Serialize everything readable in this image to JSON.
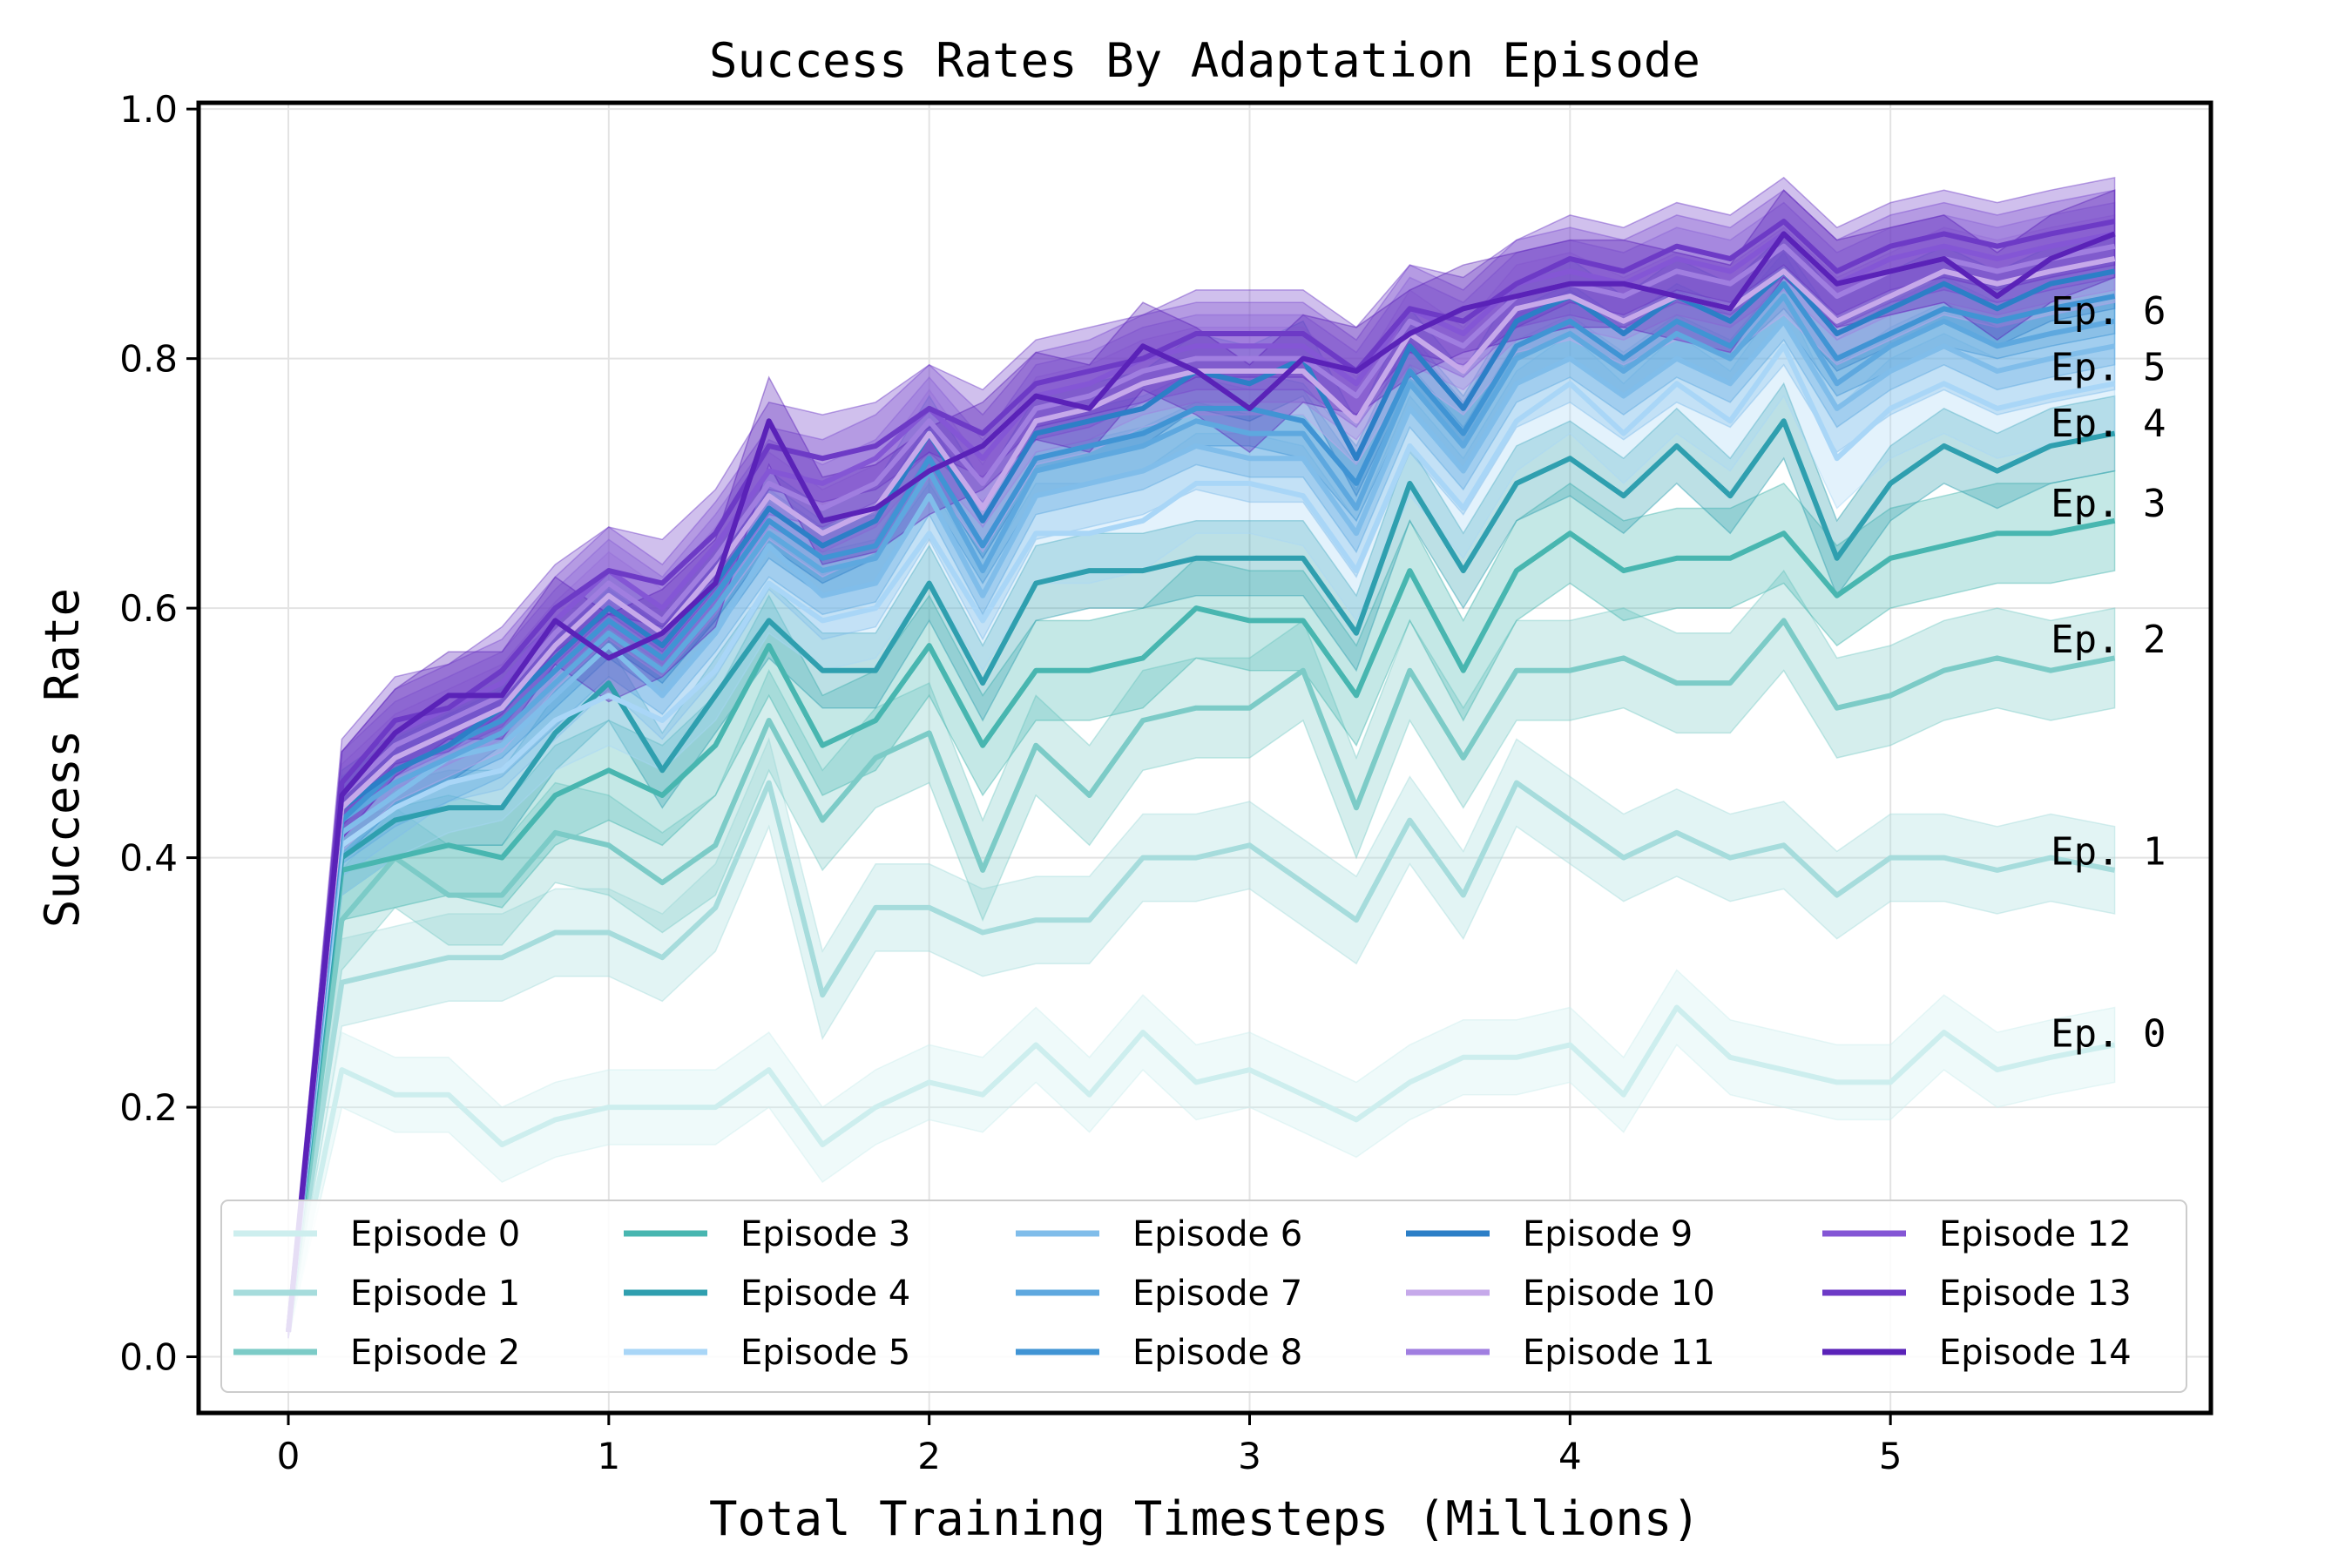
{
  "chart_data": {
    "type": "line",
    "title": "Success Rates By Adaptation Episode",
    "xlabel": "Total Training Timesteps (Millions)",
    "ylabel": "Success Rate",
    "xlim": [
      -0.28,
      6.0
    ],
    "ylim": [
      -0.045,
      1.005
    ],
    "xticks": [
      0,
      1,
      2,
      3,
      4,
      5
    ],
    "yticks": [
      0.0,
      0.2,
      0.4,
      0.6,
      0.8,
      1.0
    ],
    "ytick_labels": [
      "0.0",
      "0.2",
      "0.4",
      "0.6",
      "0.8",
      "1.0"
    ],
    "grid": true,
    "legend_position": "lower-center",
    "legend_columns": 5,
    "annotations": [
      {
        "text": "Ep. 6",
        "x": 5.5,
        "y": 0.838
      },
      {
        "text": "Ep. 5",
        "x": 5.5,
        "y": 0.793
      },
      {
        "text": "Ep. 4",
        "x": 5.5,
        "y": 0.748
      },
      {
        "text": "Ep. 3",
        "x": 5.5,
        "y": 0.684
      },
      {
        "text": "Ep. 2",
        "x": 5.5,
        "y": 0.575
      },
      {
        "text": "Ep. 1",
        "x": 5.5,
        "y": 0.405
      },
      {
        "text": "Ep. 0",
        "x": 5.5,
        "y": 0.259
      }
    ],
    "x": [
      0,
      0.167,
      0.333,
      0.5,
      0.667,
      0.833,
      1.0,
      1.167,
      1.333,
      1.5,
      1.667,
      1.833,
      2.0,
      2.167,
      2.333,
      2.5,
      2.667,
      2.833,
      3.0,
      3.167,
      3.333,
      3.5,
      3.667,
      3.833,
      4.0,
      4.167,
      4.333,
      4.5,
      4.667,
      4.833,
      5.0,
      5.167,
      5.333,
      5.5,
      5.7
    ],
    "series": [
      {
        "name": "Episode 0",
        "color": "#cdeeee",
        "band": 0.03,
        "values": [
          0.02,
          0.23,
          0.21,
          0.21,
          0.17,
          0.19,
          0.2,
          0.2,
          0.2,
          0.23,
          0.17,
          0.2,
          0.22,
          0.21,
          0.25,
          0.21,
          0.26,
          0.22,
          0.23,
          0.21,
          0.19,
          0.22,
          0.24,
          0.24,
          0.25,
          0.21,
          0.28,
          0.24,
          0.23,
          0.22,
          0.22,
          0.26,
          0.23,
          0.24,
          0.25
        ]
      },
      {
        "name": "Episode 1",
        "color": "#a6dcdc",
        "band": 0.035,
        "values": [
          0.02,
          0.3,
          0.31,
          0.32,
          0.32,
          0.34,
          0.34,
          0.32,
          0.36,
          0.46,
          0.29,
          0.36,
          0.36,
          0.34,
          0.35,
          0.35,
          0.4,
          0.4,
          0.41,
          0.38,
          0.35,
          0.43,
          0.37,
          0.46,
          0.43,
          0.4,
          0.42,
          0.4,
          0.41,
          0.37,
          0.4,
          0.4,
          0.39,
          0.4,
          0.39
        ]
      },
      {
        "name": "Episode 2",
        "color": "#7ccbc7",
        "band": 0.04,
        "values": [
          0.02,
          0.35,
          0.4,
          0.37,
          0.37,
          0.42,
          0.41,
          0.38,
          0.41,
          0.51,
          0.43,
          0.48,
          0.5,
          0.39,
          0.49,
          0.45,
          0.51,
          0.52,
          0.52,
          0.55,
          0.44,
          0.55,
          0.48,
          0.55,
          0.55,
          0.56,
          0.54,
          0.54,
          0.59,
          0.52,
          0.53,
          0.55,
          0.56,
          0.55,
          0.56
        ]
      },
      {
        "name": "Episode 3",
        "color": "#48b6b0",
        "band": 0.04,
        "values": [
          0.02,
          0.39,
          0.4,
          0.41,
          0.4,
          0.45,
          0.47,
          0.45,
          0.49,
          0.57,
          0.49,
          0.51,
          0.57,
          0.49,
          0.55,
          0.55,
          0.56,
          0.6,
          0.59,
          0.59,
          0.53,
          0.63,
          0.55,
          0.63,
          0.66,
          0.63,
          0.64,
          0.64,
          0.66,
          0.61,
          0.64,
          0.65,
          0.66,
          0.66,
          0.67
        ]
      },
      {
        "name": "Episode 4",
        "color": "#2f9faf",
        "band": 0.03,
        "values": [
          0.02,
          0.4,
          0.43,
          0.44,
          0.44,
          0.5,
          0.54,
          0.47,
          0.53,
          0.59,
          0.55,
          0.55,
          0.62,
          0.54,
          0.62,
          0.63,
          0.63,
          0.64,
          0.64,
          0.64,
          0.58,
          0.7,
          0.63,
          0.7,
          0.72,
          0.69,
          0.73,
          0.69,
          0.75,
          0.64,
          0.7,
          0.73,
          0.71,
          0.73,
          0.74
        ]
      },
      {
        "name": "Episode 5",
        "color": "#a9d6f7",
        "band": 0.04,
        "values": [
          0.02,
          0.41,
          0.44,
          0.46,
          0.47,
          0.51,
          0.53,
          0.51,
          0.55,
          0.62,
          0.59,
          0.6,
          0.66,
          0.59,
          0.66,
          0.66,
          0.67,
          0.7,
          0.7,
          0.69,
          0.63,
          0.73,
          0.68,
          0.75,
          0.78,
          0.74,
          0.78,
          0.75,
          0.81,
          0.72,
          0.76,
          0.78,
          0.76,
          0.77,
          0.78
        ]
      },
      {
        "name": "Episode 6",
        "color": "#80bdea",
        "band": 0.035,
        "values": [
          0.02,
          0.42,
          0.45,
          0.48,
          0.49,
          0.53,
          0.57,
          0.53,
          0.58,
          0.65,
          0.61,
          0.62,
          0.69,
          0.61,
          0.69,
          0.7,
          0.71,
          0.73,
          0.72,
          0.72,
          0.66,
          0.76,
          0.71,
          0.78,
          0.8,
          0.77,
          0.8,
          0.78,
          0.83,
          0.76,
          0.79,
          0.81,
          0.79,
          0.8,
          0.81
        ]
      },
      {
        "name": "Episode 7",
        "color": "#5ea8df",
        "band": 0.035,
        "values": [
          0.02,
          0.43,
          0.46,
          0.48,
          0.5,
          0.54,
          0.58,
          0.55,
          0.6,
          0.66,
          0.63,
          0.64,
          0.71,
          0.63,
          0.71,
          0.72,
          0.73,
          0.75,
          0.74,
          0.74,
          0.68,
          0.78,
          0.73,
          0.8,
          0.82,
          0.79,
          0.82,
          0.8,
          0.85,
          0.78,
          0.81,
          0.83,
          0.81,
          0.82,
          0.83
        ]
      },
      {
        "name": "Episode 8",
        "color": "#4094d4",
        "band": 0.03,
        "values": [
          0.02,
          0.43,
          0.47,
          0.49,
          0.51,
          0.55,
          0.59,
          0.56,
          0.61,
          0.67,
          0.64,
          0.65,
          0.72,
          0.65,
          0.72,
          0.73,
          0.74,
          0.76,
          0.76,
          0.75,
          0.7,
          0.79,
          0.74,
          0.81,
          0.83,
          0.8,
          0.83,
          0.81,
          0.86,
          0.8,
          0.82,
          0.84,
          0.83,
          0.84,
          0.85
        ]
      },
      {
        "name": "Episode 9",
        "color": "#2c7fc7",
        "band": 0.03,
        "values": [
          0.02,
          0.44,
          0.47,
          0.49,
          0.52,
          0.56,
          0.6,
          0.57,
          0.62,
          0.68,
          0.65,
          0.67,
          0.74,
          0.67,
          0.74,
          0.75,
          0.76,
          0.79,
          0.78,
          0.8,
          0.72,
          0.81,
          0.76,
          0.83,
          0.85,
          0.82,
          0.85,
          0.83,
          0.87,
          0.82,
          0.84,
          0.86,
          0.84,
          0.86,
          0.87
        ]
      },
      {
        "name": "Episode 10",
        "color": "#c6a9ea",
        "band": 0.035,
        "values": [
          0.02,
          0.44,
          0.48,
          0.5,
          0.52,
          0.57,
          0.61,
          0.58,
          0.63,
          0.69,
          0.66,
          0.68,
          0.74,
          0.68,
          0.75,
          0.76,
          0.78,
          0.79,
          0.79,
          0.79,
          0.75,
          0.82,
          0.79,
          0.84,
          0.85,
          0.83,
          0.85,
          0.84,
          0.87,
          0.83,
          0.85,
          0.87,
          0.86,
          0.87,
          0.88
        ]
      },
      {
        "name": "Episode 11",
        "color": "#a07ee0",
        "band": 0.035,
        "values": [
          0.02,
          0.45,
          0.49,
          0.51,
          0.53,
          0.58,
          0.62,
          0.59,
          0.64,
          0.7,
          0.68,
          0.7,
          0.75,
          0.7,
          0.76,
          0.77,
          0.79,
          0.8,
          0.8,
          0.8,
          0.77,
          0.83,
          0.81,
          0.85,
          0.86,
          0.85,
          0.87,
          0.86,
          0.89,
          0.85,
          0.87,
          0.88,
          0.87,
          0.88,
          0.89
        ]
      },
      {
        "name": "Episode 12",
        "color": "#8456d5",
        "band": 0.035,
        "values": [
          0.02,
          0.45,
          0.5,
          0.52,
          0.54,
          0.59,
          0.63,
          0.6,
          0.65,
          0.71,
          0.7,
          0.72,
          0.76,
          0.72,
          0.77,
          0.78,
          0.8,
          0.81,
          0.81,
          0.81,
          0.78,
          0.84,
          0.82,
          0.86,
          0.87,
          0.86,
          0.88,
          0.87,
          0.9,
          0.86,
          0.88,
          0.89,
          0.88,
          0.89,
          0.9
        ]
      },
      {
        "name": "Episode 13",
        "color": "#6d3ac6",
        "band": 0.035,
        "values": [
          0.02,
          0.46,
          0.51,
          0.52,
          0.55,
          0.6,
          0.63,
          0.62,
          0.66,
          0.73,
          0.72,
          0.73,
          0.76,
          0.74,
          0.78,
          0.79,
          0.8,
          0.82,
          0.82,
          0.82,
          0.79,
          0.84,
          0.83,
          0.86,
          0.88,
          0.87,
          0.89,
          0.88,
          0.91,
          0.87,
          0.89,
          0.9,
          0.89,
          0.9,
          0.91
        ]
      },
      {
        "name": "Episode 14",
        "color": "#5a22b8",
        "band": 0.035,
        "values": [
          0.02,
          0.45,
          0.5,
          0.53,
          0.53,
          0.59,
          0.56,
          0.58,
          0.62,
          0.75,
          0.67,
          0.68,
          0.71,
          0.73,
          0.77,
          0.76,
          0.81,
          0.79,
          0.76,
          0.8,
          0.79,
          0.82,
          0.84,
          0.85,
          0.86,
          0.86,
          0.85,
          0.84,
          0.9,
          0.86,
          0.87,
          0.88,
          0.85,
          0.88,
          0.9
        ]
      }
    ]
  }
}
